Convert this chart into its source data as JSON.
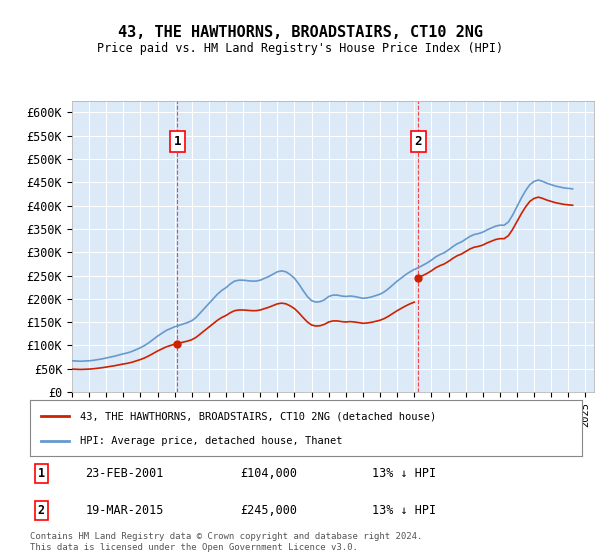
{
  "title": "43, THE HAWTHORNS, BROADSTAIRS, CT10 2NG",
  "subtitle": "Price paid vs. HM Land Registry's House Price Index (HPI)",
  "ylabel_ticks": [
    "£0",
    "£50K",
    "£100K",
    "£150K",
    "£200K",
    "£250K",
    "£300K",
    "£350K",
    "£400K",
    "£450K",
    "£500K",
    "£550K",
    "£600K"
  ],
  "ytick_values": [
    0,
    50000,
    100000,
    150000,
    200000,
    250000,
    300000,
    350000,
    400000,
    450000,
    500000,
    550000,
    600000
  ],
  "ylim": [
    0,
    625000
  ],
  "xlim_start": 1995.0,
  "xlim_end": 2025.5,
  "background_color": "#dce9f7",
  "plot_bg_color": "#dce9f7",
  "grid_color": "#ffffff",
  "line_color_hpi": "#6699cc",
  "line_color_price": "#cc2200",
  "marker1_date": 2001.15,
  "marker2_date": 2015.22,
  "marker1_price": 104000,
  "marker2_price": 245000,
  "legend_label_price": "43, THE HAWTHORNS, BROADSTAIRS, CT10 2NG (detached house)",
  "legend_label_hpi": "HPI: Average price, detached house, Thanet",
  "note1_label": "1",
  "note1_date": "23-FEB-2001",
  "note1_price": "£104,000",
  "note1_info": "13% ↓ HPI",
  "note2_label": "2",
  "note2_date": "19-MAR-2015",
  "note2_price": "£245,000",
  "note2_info": "13% ↓ HPI",
  "footer": "Contains HM Land Registry data © Crown copyright and database right 2024.\nThis data is licensed under the Open Government Licence v3.0.",
  "hpi_years": [
    1995.0,
    1995.25,
    1995.5,
    1995.75,
    1996.0,
    1996.25,
    1996.5,
    1996.75,
    1997.0,
    1997.25,
    1997.5,
    1997.75,
    1998.0,
    1998.25,
    1998.5,
    1998.75,
    1999.0,
    1999.25,
    1999.5,
    1999.75,
    2000.0,
    2000.25,
    2000.5,
    2000.75,
    2001.0,
    2001.25,
    2001.5,
    2001.75,
    2002.0,
    2002.25,
    2002.5,
    2002.75,
    2003.0,
    2003.25,
    2003.5,
    2003.75,
    2004.0,
    2004.25,
    2004.5,
    2004.75,
    2005.0,
    2005.25,
    2005.5,
    2005.75,
    2006.0,
    2006.25,
    2006.5,
    2006.75,
    2007.0,
    2007.25,
    2007.5,
    2007.75,
    2008.0,
    2008.25,
    2008.5,
    2008.75,
    2009.0,
    2009.25,
    2009.5,
    2009.75,
    2010.0,
    2010.25,
    2010.5,
    2010.75,
    2011.0,
    2011.25,
    2011.5,
    2011.75,
    2012.0,
    2012.25,
    2012.5,
    2012.75,
    2013.0,
    2013.25,
    2013.5,
    2013.75,
    2014.0,
    2014.25,
    2014.5,
    2014.75,
    2015.0,
    2015.25,
    2015.5,
    2015.75,
    2016.0,
    2016.25,
    2016.5,
    2016.75,
    2017.0,
    2017.25,
    2017.5,
    2017.75,
    2018.0,
    2018.25,
    2018.5,
    2018.75,
    2019.0,
    2019.25,
    2019.5,
    2019.75,
    2020.0,
    2020.25,
    2020.5,
    2020.75,
    2021.0,
    2021.25,
    2021.5,
    2021.75,
    2022.0,
    2022.25,
    2022.5,
    2022.75,
    2023.0,
    2023.25,
    2023.5,
    2023.75,
    2024.0,
    2024.25
  ],
  "hpi_values": [
    67000,
    66500,
    66000,
    66500,
    67000,
    68000,
    69500,
    71000,
    73000,
    75000,
    77000,
    79500,
    82000,
    84000,
    87000,
    91000,
    95000,
    100000,
    106000,
    113000,
    120000,
    126000,
    132000,
    136000,
    140000,
    143000,
    146000,
    149000,
    153000,
    160000,
    170000,
    180000,
    190000,
    200000,
    210000,
    218000,
    224000,
    232000,
    238000,
    240000,
    240000,
    239000,
    238000,
    238000,
    240000,
    244000,
    248000,
    253000,
    258000,
    260000,
    258000,
    252000,
    244000,
    232000,
    218000,
    205000,
    196000,
    193000,
    194000,
    198000,
    205000,
    208000,
    208000,
    206000,
    205000,
    206000,
    205000,
    203000,
    201000,
    202000,
    204000,
    207000,
    210000,
    215000,
    222000,
    230000,
    238000,
    245000,
    252000,
    258000,
    263000,
    267000,
    272000,
    277000,
    283000,
    290000,
    295000,
    299000,
    305000,
    312000,
    318000,
    322000,
    328000,
    334000,
    338000,
    340000,
    343000,
    348000,
    352000,
    356000,
    358000,
    358000,
    365000,
    380000,
    398000,
    416000,
    432000,
    445000,
    452000,
    455000,
    452000,
    448000,
    445000,
    442000,
    440000,
    438000,
    437000,
    436000
  ],
  "price_years": [
    2001.15,
    2015.22
  ],
  "price_values": [
    104000,
    245000
  ]
}
